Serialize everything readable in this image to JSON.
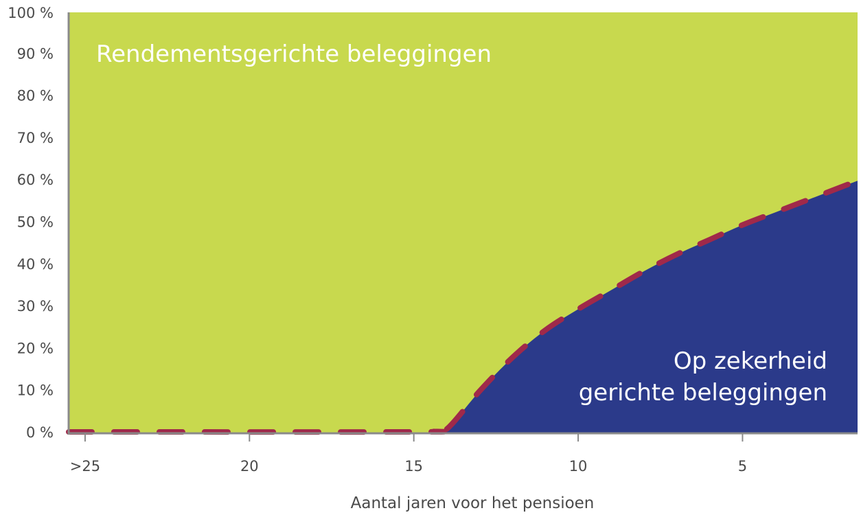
{
  "chart_data": {
    "type": "area",
    "xlabel": "Aantal jaren voor het pensioen",
    "ylabel": "",
    "title": "",
    "x_ticks": [
      {
        "value": 25,
        "label": ">25"
      },
      {
        "value": 20,
        "label": "20"
      },
      {
        "value": 15,
        "label": "15"
      },
      {
        "value": 10,
        "label": "10"
      },
      {
        "value": 5,
        "label": "5"
      }
    ],
    "y_ticks": [
      {
        "value": 0,
        "label": "0 %"
      },
      {
        "value": 10,
        "label": "10 %"
      },
      {
        "value": 20,
        "label": "20 %"
      },
      {
        "value": 30,
        "label": "30 %"
      },
      {
        "value": 40,
        "label": "40 %"
      },
      {
        "value": 50,
        "label": "50 %"
      },
      {
        "value": 60,
        "label": "60 %"
      },
      {
        "value": 70,
        "label": "70 %"
      },
      {
        "value": 80,
        "label": "80 %"
      },
      {
        "value": 90,
        "label": "90 %"
      },
      {
        "value": 100,
        "label": "100 %"
      }
    ],
    "xlim": [
      25.5,
      1.5
    ],
    "ylim": [
      0,
      100
    ],
    "series": [
      {
        "name": "Op zekerheid gerichte beleggingen",
        "color": "#2b3a8a",
        "x": [
          25.5,
          15,
          14.5,
          14,
          13,
          12,
          11,
          10,
          9,
          8,
          7,
          6,
          5,
          4,
          3,
          2,
          1.5
        ],
        "values": [
          0,
          0,
          0.5,
          1,
          10,
          18,
          24.5,
          29.5,
          34,
          38.5,
          42.5,
          46,
          49.5,
          52.5,
          55.5,
          58.5,
          60
        ]
      },
      {
        "name": "Rendementsgerichte beleggingen",
        "color": "#c8d94e",
        "stacked_to": 100
      }
    ],
    "boundary_line": {
      "color": "#a0294a",
      "style": "dashed"
    },
    "labels": {
      "top": "Rendementsgerichte beleggingen",
      "bottom_line1": "Op zekerheid",
      "bottom_line2": "gerichte beleggingen"
    },
    "grid": false
  }
}
